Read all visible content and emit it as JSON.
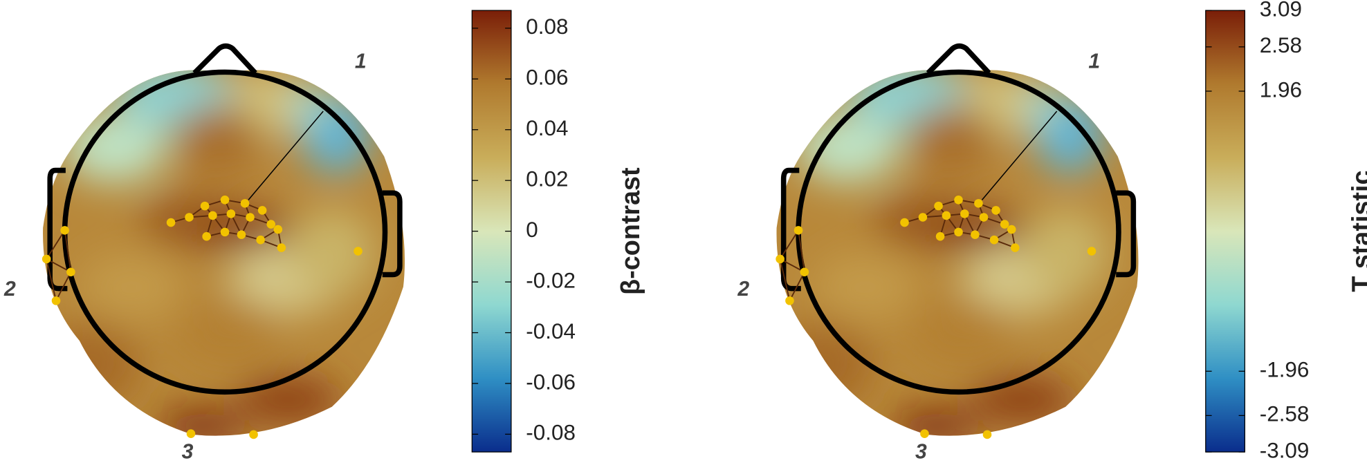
{
  "chart_data": [
    {
      "type": "topomap",
      "colorbar_label": "β-contrast",
      "clim": [
        -0.087,
        0.087
      ],
      "cticks": [
        -0.08,
        -0.06,
        -0.04,
        -0.02,
        0,
        0.02,
        0.04,
        0.06,
        0.08
      ],
      "colormap": [
        "#0a2d8c",
        "#2f8fc4",
        "#8fd8d0",
        "#d9e6b9",
        "#c9ad5a",
        "#b07a2e",
        "#7a1e08"
      ],
      "annotations": [
        "1",
        "2",
        "3"
      ]
    },
    {
      "type": "topomap",
      "colorbar_label": "T statistic",
      "clim": [
        -3.09,
        3.09
      ],
      "cticks": [
        -3.09,
        -2.58,
        -1.96,
        1.96,
        2.58,
        3.09
      ],
      "colormap": [
        "#0a2d8c",
        "#2f8fc4",
        "#8fd8d0",
        "#d9e6b9",
        "#c9ad5a",
        "#b07a2e",
        "#7a1e08"
      ],
      "annotations": [
        "1",
        "2",
        "3"
      ]
    }
  ]
}
